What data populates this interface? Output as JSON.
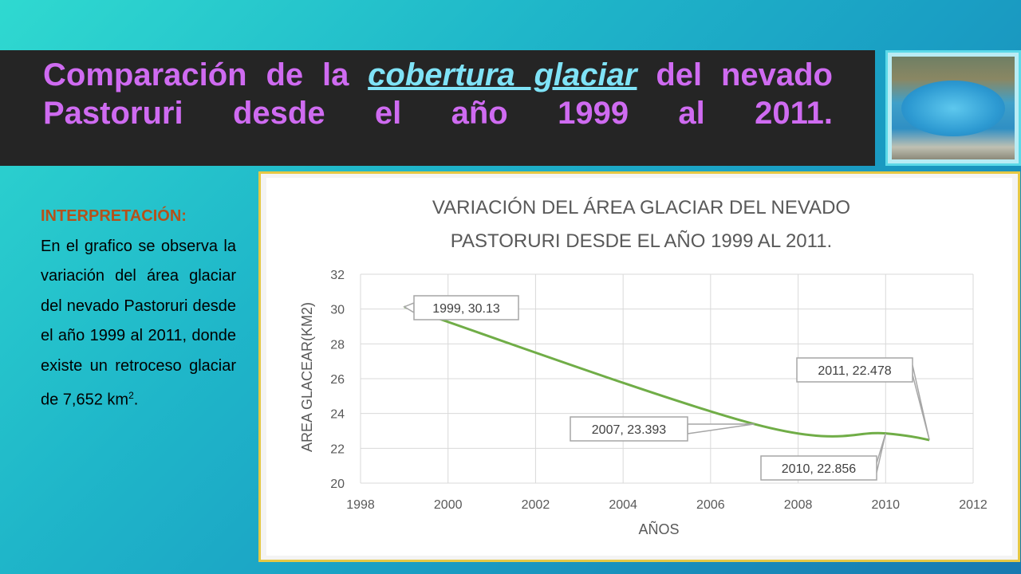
{
  "slide": {
    "title_part1": "Comparación de la",
    "title_link": "cobertura glaciar",
    "title_part2": "del nevado",
    "title_line2_words": [
      "Pastoruri",
      "desde",
      "el",
      "año",
      "1999",
      "al",
      "2011."
    ],
    "interpretation_heading": "INTERPRETACIÓN:",
    "interpretation_text": "En el grafico se observa la variación del área glaciar del nevado Pastoruri desde el año 1999 al 2011, donde existe un retroceso glaciar de 7,652 km",
    "interpretation_sup": "2",
    "interpretation_end": ".",
    "accent_title": "#cf6bf1",
    "accent_link": "#7fe3f7",
    "accent_heading": "#b5511a"
  },
  "chart_data": {
    "type": "line",
    "title_line1": "VARIACIÓN DEL ÁREA GLACIAR DEL NEVADO",
    "title_line2": "PASTORURI DESDE EL AÑO 1999 AL 2011.",
    "xlabel": "AÑOS",
    "ylabel": "AREA GLACEAR(KM2)",
    "xlim": [
      1998,
      2012
    ],
    "ylim": [
      20,
      32
    ],
    "x_ticks": [
      1998,
      2000,
      2002,
      2004,
      2006,
      2008,
      2010,
      2012
    ],
    "y_ticks": [
      20,
      22,
      24,
      26,
      28,
      30,
      32
    ],
    "grid": true,
    "line_color": "#70ad47",
    "series": [
      {
        "x": [
          1999,
          2007,
          2010,
          2011
        ],
        "y": [
          30.13,
          23.393,
          22.856,
          22.478
        ]
      }
    ],
    "annotations": [
      {
        "text": "1999, 30.13",
        "x": 1999,
        "y": 30.13
      },
      {
        "text": "2007, 23.393",
        "x": 2007,
        "y": 23.393
      },
      {
        "text": "2010, 22.856",
        "x": 2010,
        "y": 22.856
      },
      {
        "text": "2011, 22.478",
        "x": 2011,
        "y": 22.478
      }
    ]
  }
}
